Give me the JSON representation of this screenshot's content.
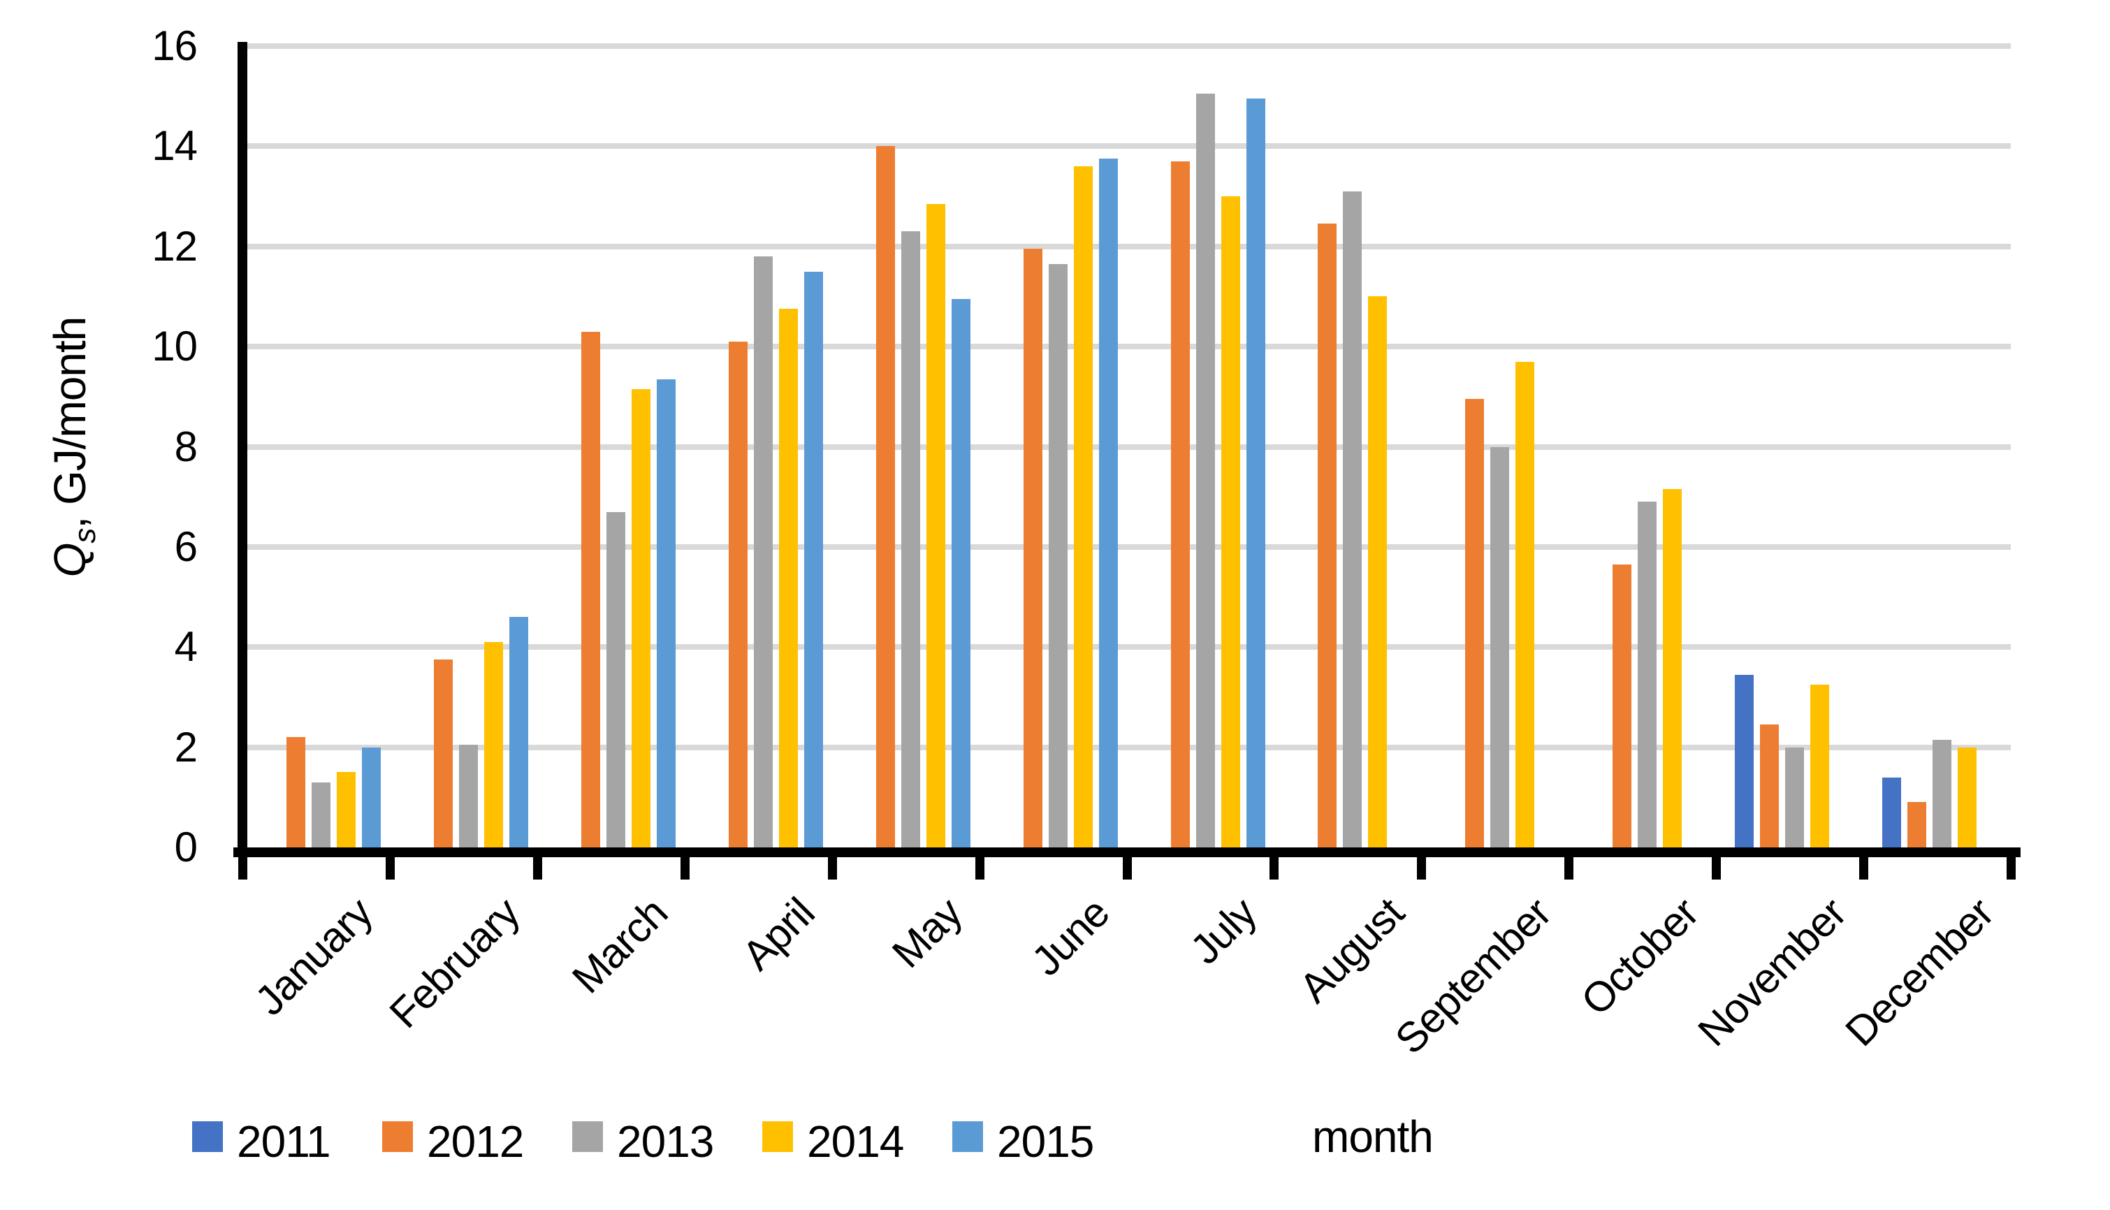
{
  "chart_data": {
    "type": "bar",
    "title": "",
    "categories": [
      "January",
      "February",
      "March",
      "April",
      "May",
      "June",
      "July",
      "August",
      "September",
      "October",
      "November",
      "December"
    ],
    "series": [
      {
        "name": "2011",
        "color": "#4472C4",
        "values": [
          null,
          null,
          null,
          null,
          null,
          null,
          null,
          null,
          null,
          null,
          3.45,
          1.4
        ]
      },
      {
        "name": "2012",
        "color": "#ED7D31",
        "values": [
          2.2,
          3.75,
          10.3,
          10.1,
          14.0,
          11.95,
          13.7,
          12.45,
          8.95,
          5.65,
          2.45,
          0.9
        ]
      },
      {
        "name": "2013",
        "color": "#A5A5A5",
        "values": [
          1.3,
          2.05,
          6.7,
          11.8,
          12.3,
          11.65,
          15.05,
          13.1,
          8.0,
          6.9,
          2.0,
          2.15
        ]
      },
      {
        "name": "2014",
        "color": "#FFC000",
        "values": [
          1.5,
          4.1,
          9.15,
          10.75,
          12.85,
          13.6,
          13.0,
          11.0,
          9.7,
          7.15,
          3.25,
          2.0
        ]
      },
      {
        "name": "2015",
        "color": "#5B9BD5",
        "values": [
          2.0,
          4.6,
          9.35,
          11.5,
          10.95,
          13.75,
          14.95,
          null,
          null,
          null,
          null,
          null
        ]
      }
    ],
    "xlabel": "month",
    "ylabel_q": "Q",
    "ylabel_sub": "s",
    "ylabel_rest": ", GJ/month",
    "ylim": [
      0,
      16
    ],
    "ytick_step": 2,
    "grid": true,
    "legend_position": "bottom-left",
    "gridline_color": "#D9D9D9",
    "axis_color": "#000000",
    "background_color": "#FFFFFF"
  }
}
